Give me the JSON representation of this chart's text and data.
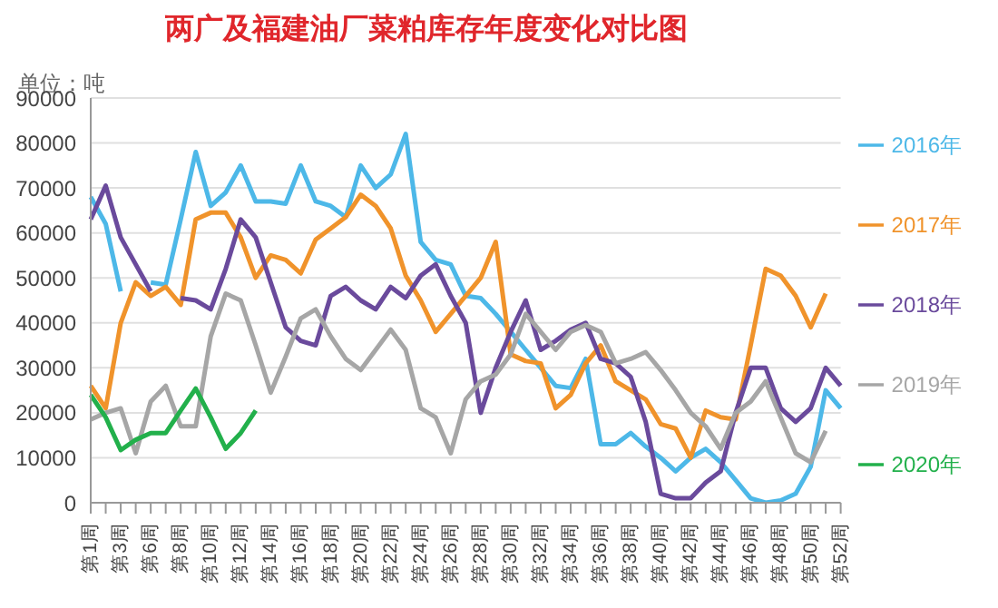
{
  "chart_data": {
    "type": "line",
    "title": "两广及福建油厂菜粕库存年度变化对比图",
    "ylabel": "单位：吨",
    "categories": [
      "第1周",
      null,
      "第3周",
      null,
      "第6周",
      null,
      "第8周",
      null,
      "第10周",
      null,
      "第12周",
      null,
      "第14周",
      null,
      "第16周",
      null,
      "第18周",
      null,
      "第20周",
      null,
      "第22周",
      null,
      "第24周",
      null,
      "第26周",
      null,
      "第28周",
      null,
      "第30周",
      null,
      "第32周",
      null,
      "第34周",
      null,
      "第36周",
      null,
      "第38周",
      null,
      "第40周",
      null,
      "第42周",
      null,
      "第44周",
      null,
      "第46周",
      null,
      "第48周",
      null,
      "第50周",
      null,
      "第52周"
    ],
    "series": [
      {
        "name": "2016年",
        "color": "#4db8e8",
        "values": [
          68000,
          62000,
          47000,
          null,
          49000,
          48500,
          63000,
          78000,
          66000,
          69000,
          75000,
          67000,
          67000,
          66500,
          75000,
          67000,
          66000,
          63500,
          75000,
          70000,
          73000,
          82000,
          58000,
          54000,
          53000,
          46000,
          45500,
          42000,
          38000,
          34000,
          30000,
          26000,
          25500,
          32000,
          13000,
          13000,
          15500,
          12500,
          10000,
          7000,
          10000,
          12000,
          9000,
          5000,
          1000,
          0,
          500,
          2000,
          8000,
          25000,
          21000
        ]
      },
      {
        "name": "2017年",
        "color": "#f0932b",
        "values": [
          26000,
          21000,
          40000,
          49000,
          46000,
          48000,
          44000,
          63000,
          64500,
          64500,
          59000,
          50000,
          55000,
          54000,
          51000,
          58500,
          61000,
          63500,
          68500,
          66000,
          61000,
          50500,
          45000,
          38000,
          42000,
          46000,
          50000,
          58000,
          33000,
          31500,
          31000,
          21000,
          24000,
          31000,
          35000,
          27000,
          25000,
          23000,
          17500,
          16500,
          10000,
          20500,
          19000,
          18500,
          35000,
          52000,
          50500,
          46000,
          39000,
          46500,
          null
        ]
      },
      {
        "name": "2018年",
        "color": "#6a4a9c",
        "values": [
          63000,
          70500,
          59000,
          53000,
          47000,
          null,
          45500,
          45000,
          43000,
          52000,
          63000,
          59000,
          49000,
          39000,
          36000,
          35000,
          46000,
          48000,
          45000,
          43000,
          48000,
          45500,
          50500,
          53000,
          46000,
          40000,
          20000,
          30000,
          38000,
          45000,
          34000,
          36000,
          38500,
          40000,
          32000,
          31000,
          28000,
          18000,
          2000,
          1000,
          1000,
          4500,
          7000,
          20000,
          30000,
          30000,
          21000,
          18000,
          21000,
          30000,
          26000
        ]
      },
      {
        "name": "2019年",
        "color": "#a6a6a6",
        "values": [
          18500,
          20000,
          21000,
          11000,
          22500,
          26000,
          17000,
          17000,
          37000,
          46500,
          45000,
          35000,
          24500,
          32500,
          41000,
          43000,
          37000,
          32000,
          29500,
          34000,
          38500,
          34000,
          21000,
          19000,
          11000,
          23000,
          27000,
          28500,
          33000,
          42000,
          38000,
          34000,
          38000,
          39500,
          38000,
          31000,
          32000,
          33500,
          29500,
          25000,
          20000,
          17000,
          12000,
          20000,
          22500,
          27000,
          19000,
          11000,
          9000,
          16000,
          null
        ]
      },
      {
        "name": "2020年",
        "color": "#22b04b",
        "values": [
          24000,
          19000,
          11700,
          14000,
          15500,
          15500,
          20500,
          25400,
          19000,
          12000,
          15500,
          20500,
          null,
          null,
          null,
          null,
          null,
          null,
          null,
          null,
          null,
          null,
          null,
          null,
          null,
          null,
          null,
          null,
          null,
          null,
          null,
          null,
          null,
          null,
          null,
          null,
          null,
          null,
          null,
          null,
          null,
          null,
          null,
          null,
          null,
          null,
          null,
          null,
          null,
          null,
          null
        ]
      }
    ],
    "ylim": [
      0,
      90000
    ],
    "yticks": [
      0,
      10000,
      20000,
      30000,
      40000,
      50000,
      60000,
      70000,
      80000,
      90000
    ],
    "grid": "y",
    "legend": "right",
    "marker": "none",
    "line_style": "solid"
  }
}
